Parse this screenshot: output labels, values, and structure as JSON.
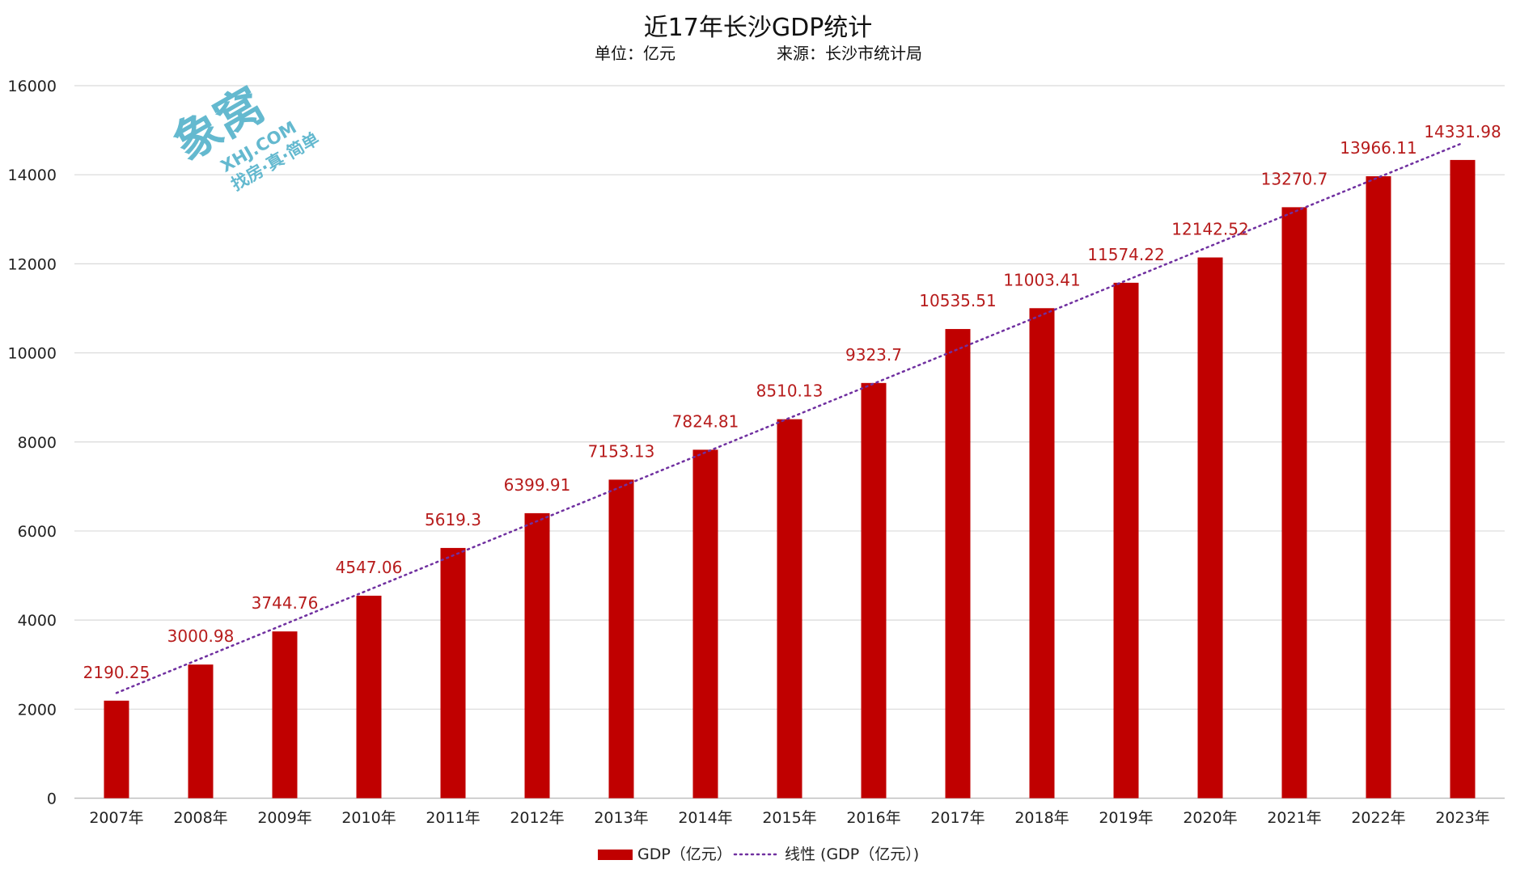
{
  "chart_data": {
    "type": "bar",
    "title": "近17年长沙GDP统计",
    "subtitle_unit": "单位：亿元",
    "subtitle_source": "来源：长沙市统计局",
    "categories": [
      "2007年",
      "2008年",
      "2009年",
      "2010年",
      "2011年",
      "2012年",
      "2013年",
      "2014年",
      "2015年",
      "2016年",
      "2017年",
      "2018年",
      "2019年",
      "2020年",
      "2021年",
      "2022年",
      "2023年"
    ],
    "series": [
      {
        "name": "GDP（亿元）",
        "values": [
          2190.25,
          3000.98,
          3744.76,
          4547.06,
          5619.3,
          6399.91,
          7153.13,
          7824.81,
          8510.13,
          9323.7,
          10535.51,
          11003.41,
          11574.22,
          12142.52,
          13270.7,
          13966.11,
          14331.98
        ],
        "value_labels": [
          "2190.25",
          "3000.98",
          "3744.76",
          "4547.06",
          "5619.3",
          "6399.91",
          "7153.13",
          "7824.81",
          "8510.13",
          "9323.7",
          "10535.51",
          "11003.41",
          "11574.22",
          "12142.52",
          "13270.7",
          "13966.11",
          "14331.98"
        ],
        "color": "#c00000"
      }
    ],
    "trendline": {
      "name": "线性 (GDP（亿元）)",
      "type": "linear",
      "color": "#7030a0",
      "style": "dotted"
    },
    "yticks": [
      "0",
      "2000",
      "4000",
      "6000",
      "8000",
      "10000",
      "12000",
      "14000",
      "16000"
    ],
    "ylim": [
      0,
      16000
    ],
    "grid": true,
    "legend_position": "bottom"
  },
  "watermark": {
    "brand": "象窝",
    "domain": "XHJ.COM",
    "slogan": "找房·真·简单"
  }
}
